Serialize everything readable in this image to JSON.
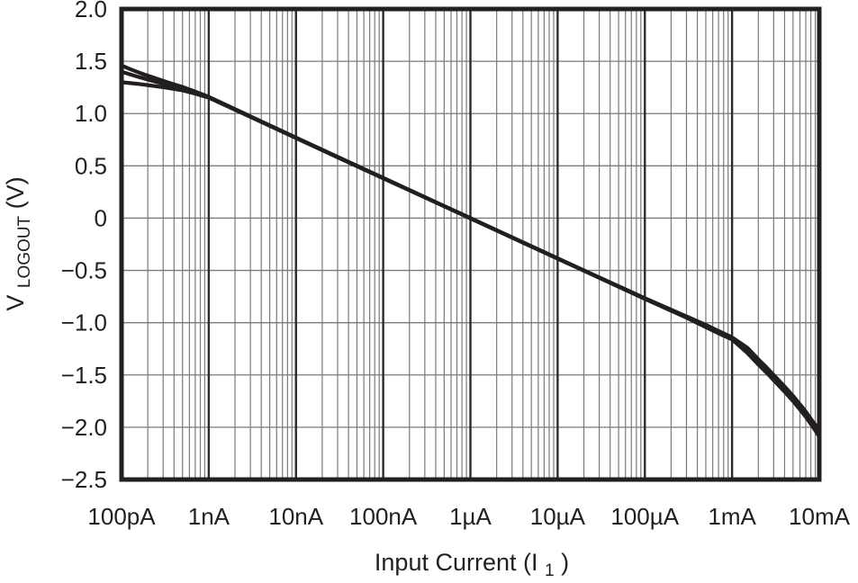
{
  "page": {
    "background": "#ffffff"
  },
  "chart_data": {
    "type": "line",
    "x_scale": "log",
    "title": "",
    "x_axis": {
      "title_pre": "Input Current (I",
      "title_sub": "1",
      "title_post": ")",
      "min": 1e-10,
      "max": 0.01,
      "ticks": [
        {
          "label": "100pA",
          "value": 1e-10
        },
        {
          "label": "1nA",
          "value": 1e-09
        },
        {
          "label": "10nA",
          "value": 1e-08
        },
        {
          "label": "100nA",
          "value": 1e-07
        },
        {
          "label": "1µA",
          "value": 1e-06
        },
        {
          "label": "10µA",
          "value": 1e-05
        },
        {
          "label": "100µA",
          "value": 0.0001
        },
        {
          "label": "1mA",
          "value": 0.001
        },
        {
          "label": "10mA",
          "value": 0.01
        }
      ]
    },
    "y_axis": {
      "title_main": "V",
      "title_sub": "LOGOUT",
      "title_post": " (V)",
      "min": -2.5,
      "max": 2.0,
      "ticks": [
        {
          "label": "2.0",
          "value": 2.0
        },
        {
          "label": "1.5",
          "value": 1.5
        },
        {
          "label": "1.0",
          "value": 1.0
        },
        {
          "label": "0.5",
          "value": 0.5
        },
        {
          "label": "0",
          "value": 0.0
        },
        {
          "label": "−0.5",
          "value": -0.5
        },
        {
          "label": "−1.0",
          "value": -1.0
        },
        {
          "label": "−1.5",
          "value": -1.5
        },
        {
          "label": "−2.0",
          "value": -2.0
        },
        {
          "label": "−2.5",
          "value": -2.5
        }
      ]
    },
    "grid": {
      "vertical_minor_per_decade": [
        2,
        3,
        4,
        5,
        6,
        7,
        8,
        9
      ],
      "horizontal_step": 0.5,
      "grid_on": true
    },
    "legend": {
      "visible": false
    },
    "colors": {
      "curve": "#231f20",
      "frame": "#231f20",
      "grid_minor": "#7a7a7a",
      "grid_horizontal": "#7a7a7a",
      "grid_major_vertical": "#2e2a2b",
      "text": "#231f20",
      "background": "#ffffff"
    },
    "series": [
      {
        "name": "curve-1",
        "points": [
          [
            1e-10,
            1.46
          ],
          [
            1.3e-10,
            1.42
          ],
          [
            1.8e-10,
            1.375
          ],
          [
            2.5e-10,
            1.335
          ],
          [
            3.5e-10,
            1.295
          ],
          [
            5e-10,
            1.255
          ],
          [
            7e-10,
            1.21
          ],
          [
            1e-09,
            1.16
          ],
          [
            1e-08,
            0.77
          ],
          [
            1e-07,
            0.385
          ],
          [
            1e-06,
            0.0
          ],
          [
            1e-05,
            -0.385
          ],
          [
            0.0001,
            -0.77
          ],
          [
            0.0003,
            -0.95
          ],
          [
            0.0005,
            -1.04
          ],
          [
            0.0007,
            -1.1
          ],
          [
            0.001,
            -1.16
          ],
          [
            0.0015,
            -1.29
          ],
          [
            0.002,
            -1.4
          ],
          [
            0.0025,
            -1.48
          ],
          [
            0.003,
            -1.55
          ],
          [
            0.004,
            -1.66
          ],
          [
            0.005,
            -1.75
          ],
          [
            0.006,
            -1.83
          ],
          [
            0.007,
            -1.9
          ],
          [
            0.0085,
            -2.0
          ],
          [
            0.01,
            -2.09
          ]
        ]
      },
      {
        "name": "curve-2",
        "points": [
          [
            1e-10,
            1.4
          ],
          [
            1.5e-10,
            1.355
          ],
          [
            2e-10,
            1.325
          ],
          [
            3e-10,
            1.285
          ],
          [
            5e-10,
            1.235
          ],
          [
            7e-10,
            1.2
          ],
          [
            1e-09,
            1.155
          ],
          [
            1e-08,
            0.765
          ],
          [
            1e-07,
            0.38
          ],
          [
            1e-06,
            0.0
          ],
          [
            1e-05,
            -0.385
          ],
          [
            0.0001,
            -0.765
          ],
          [
            0.0003,
            -0.94
          ],
          [
            0.0005,
            -1.02
          ],
          [
            0.0007,
            -1.08
          ],
          [
            0.001,
            -1.14
          ],
          [
            0.0015,
            -1.24
          ],
          [
            0.002,
            -1.35
          ],
          [
            0.0025,
            -1.43
          ],
          [
            0.003,
            -1.5
          ],
          [
            0.004,
            -1.61
          ],
          [
            0.005,
            -1.7
          ],
          [
            0.006,
            -1.78
          ],
          [
            0.007,
            -1.85
          ],
          [
            0.0085,
            -1.95
          ],
          [
            0.01,
            -2.02
          ]
        ]
      },
      {
        "name": "curve-3",
        "points": [
          [
            1e-10,
            1.3
          ],
          [
            1.5e-10,
            1.285
          ],
          [
            2e-10,
            1.272
          ],
          [
            3e-10,
            1.252
          ],
          [
            5e-10,
            1.222
          ],
          [
            7e-10,
            1.19
          ],
          [
            1e-09,
            1.152
          ],
          [
            1e-08,
            0.768
          ],
          [
            1e-07,
            0.383
          ],
          [
            1e-06,
            -0.003
          ],
          [
            1e-05,
            -0.388
          ],
          [
            0.0001,
            -0.772
          ],
          [
            0.0003,
            -0.952
          ],
          [
            0.0005,
            -1.042
          ],
          [
            0.0007,
            -1.102
          ],
          [
            0.001,
            -1.158
          ],
          [
            0.0015,
            -1.28
          ],
          [
            0.002,
            -1.39
          ],
          [
            0.0025,
            -1.47
          ],
          [
            0.003,
            -1.54
          ],
          [
            0.004,
            -1.65
          ],
          [
            0.005,
            -1.74
          ],
          [
            0.006,
            -1.82
          ],
          [
            0.007,
            -1.89
          ],
          [
            0.0085,
            -1.99
          ],
          [
            0.01,
            -2.07
          ]
        ]
      }
    ]
  }
}
